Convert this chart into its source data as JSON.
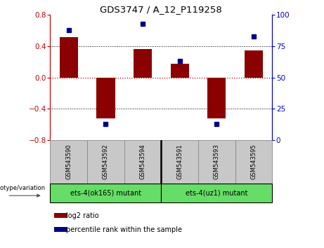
{
  "title": "GDS3747 / A_12_P119258",
  "samples": [
    "GSM543590",
    "GSM543592",
    "GSM543594",
    "GSM543591",
    "GSM543593",
    "GSM543595"
  ],
  "log2_ratio": [
    0.52,
    -0.52,
    0.36,
    0.18,
    -0.52,
    0.35
  ],
  "percentile_rank": [
    88,
    13,
    93,
    63,
    13,
    83
  ],
  "ylim_left": [
    -0.8,
    0.8
  ],
  "ylim_right": [
    0,
    100
  ],
  "yticks_left": [
    -0.8,
    -0.4,
    0,
    0.4,
    0.8
  ],
  "yticks_right": [
    0,
    25,
    50,
    75,
    100
  ],
  "bar_color": "#8B0000",
  "dot_color": "#00008B",
  "group1_label": "ets-4(ok165) mutant",
  "group2_label": "ets-4(uz1) mutant",
  "group1_color": "#66DD66",
  "group2_color": "#66DD66",
  "label_color_red": "#CC0000",
  "label_color_blue": "#0000CC",
  "genotype_label": "genotype/variation",
  "legend_log2": "log2 ratio",
  "legend_pct": "percentile rank within the sample",
  "tick_area_color": "#c8c8c8",
  "zero_line_color": "#CC0000",
  "dotted_color": "#000000",
  "bar_width": 0.5
}
